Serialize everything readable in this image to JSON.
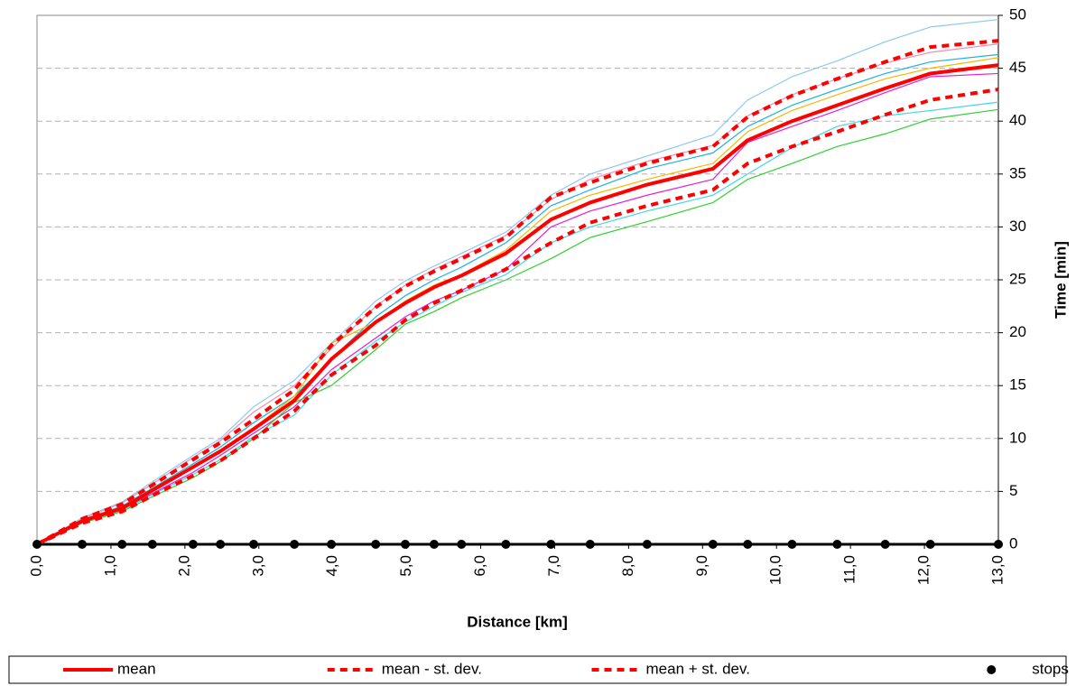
{
  "chart_data": {
    "type": "line",
    "x_label": "Distance [km]",
    "y_label": "Time [min]",
    "x": [
      0,
      0.61,
      1.15,
      1.56,
      2.11,
      2.48,
      2.93,
      3.48,
      3.98,
      4.58,
      4.98,
      5.37,
      5.74,
      6.34,
      6.95,
      7.48,
      8.25,
      9.14,
      9.61,
      10.21,
      10.82,
      11.47,
      12.08,
      13.0
    ],
    "xlim": [
      0,
      13
    ],
    "xticks": [
      {
        "value": 0,
        "label": "0,0"
      },
      {
        "value": 1,
        "label": "1,0"
      },
      {
        "value": 2,
        "label": "2,0"
      },
      {
        "value": 3,
        "label": "3,0"
      },
      {
        "value": 4,
        "label": "4,0"
      },
      {
        "value": 5,
        "label": "5,0"
      },
      {
        "value": 6,
        "label": "6,0"
      },
      {
        "value": 7,
        "label": "7,0"
      },
      {
        "value": 8,
        "label": "8,0"
      },
      {
        "value": 9,
        "label": "9,0"
      },
      {
        "value": 10,
        "label": "10,0"
      },
      {
        "value": 11,
        "label": "11,0"
      },
      {
        "value": 12,
        "label": "12,0"
      },
      {
        "value": 13,
        "label": "13,0"
      }
    ],
    "ylim": [
      0,
      50
    ],
    "yticks": [
      0,
      5,
      10,
      15,
      20,
      25,
      30,
      35,
      40,
      45,
      50
    ],
    "y_axis_side": "right",
    "grid": true,
    "legend": "bottom",
    "series": [
      {
        "color": "#8ec8f0",
        "style": "thin",
        "values": [
          0,
          2.5,
          4,
          5.9,
          8.4,
          10,
          13,
          15.5,
          19,
          23,
          24.9,
          26.3,
          27.5,
          29.5,
          33,
          35,
          36.7,
          38.7,
          42,
          44.2,
          45.7,
          47.5,
          48.9,
          49.6
        ]
      },
      {
        "color": "#f48fb1",
        "style": "thin",
        "values": [
          0,
          2.4,
          3.9,
          5.7,
          8.2,
          9.8,
          12.5,
          15,
          18.5,
          22.5,
          24.5,
          26,
          27.2,
          29.2,
          32.6,
          34.5,
          36.2,
          37.7,
          40.5,
          42.5,
          44,
          45.5,
          46.5,
          47.3
        ]
      },
      {
        "color": "#1ab0e0",
        "style": "thin",
        "values": [
          0,
          2.3,
          3.6,
          5.3,
          7.6,
          9.2,
          11.5,
          14,
          17.5,
          21.5,
          23.5,
          25,
          26.2,
          28.5,
          32,
          33.5,
          35.5,
          37,
          39.5,
          41.5,
          43,
          44.5,
          45.6,
          46.3
        ]
      },
      {
        "color": "#f5b800",
        "style": "thin",
        "values": [
          0,
          2.2,
          3.5,
          5,
          7.2,
          8.7,
          11,
          14,
          19,
          21,
          23,
          24.5,
          25.5,
          27.8,
          31.5,
          33,
          34.5,
          36,
          39,
          41,
          42.5,
          44,
          45,
          46
        ]
      },
      {
        "color": "#e020e0",
        "style": "thin",
        "values": [
          0,
          2.1,
          3.3,
          4.8,
          6.8,
          8.4,
          10.5,
          13,
          16.5,
          19.5,
          21.5,
          23,
          24,
          26,
          30,
          31.5,
          33,
          34.5,
          38,
          39.5,
          41,
          42.7,
          44.2,
          44.5
        ]
      },
      {
        "color": "#40d8e8",
        "style": "thin",
        "values": [
          0,
          2,
          3.2,
          4.7,
          6.6,
          8,
          10.2,
          12.2,
          16,
          19.2,
          21,
          22.5,
          23.8,
          25.5,
          28.5,
          30,
          31.5,
          33,
          35,
          37.5,
          39.5,
          40.5,
          41,
          41.8
        ]
      },
      {
        "color": "#30d030",
        "style": "thin",
        "values": [
          0,
          2,
          3.1,
          4.5,
          6.3,
          7.8,
          10,
          13.4,
          15,
          18.4,
          20.8,
          22,
          23.3,
          25,
          27,
          29,
          30.5,
          32.3,
          34.5,
          36,
          37.6,
          38.8,
          40.2,
          41.1
        ]
      },
      {
        "name": "mean",
        "color": "#ff0000",
        "style": "solid",
        "values": [
          0,
          2.2,
          3.4,
          5.1,
          7.3,
          8.8,
          10.9,
          13.6,
          17.5,
          21,
          22.8,
          24.3,
          25.4,
          27.5,
          30.7,
          32.3,
          34,
          35.5,
          38.2,
          40,
          41.5,
          43.1,
          44.5,
          45.3
        ]
      },
      {
        "name": "mean - st. dev.",
        "color": "#ff0000",
        "style": "dashed",
        "values": [
          0,
          2,
          3.1,
          4.6,
          6.5,
          7.9,
          10,
          12.6,
          16,
          18.8,
          21.2,
          22.8,
          24,
          26,
          28.5,
          30.4,
          32,
          33.5,
          36,
          37.6,
          39,
          40.6,
          42,
          43
        ]
      },
      {
        "name": "mean + st. dev.",
        "color": "#ff0000",
        "style": "dashed",
        "values": [
          0,
          2.4,
          3.8,
          5.6,
          8,
          9.6,
          11.8,
          14.6,
          18.8,
          22.4,
          24.4,
          25.8,
          27,
          29,
          32.8,
          34.2,
          36,
          37.6,
          40.4,
          42.4,
          44,
          45.6,
          47,
          47.6
        ]
      },
      {
        "name": "stops",
        "color": "#000000",
        "style": "markers",
        "values": [
          0,
          0,
          0,
          0,
          0,
          0,
          0,
          0,
          0,
          0,
          0,
          0,
          0,
          0,
          0,
          0,
          0,
          0,
          0,
          0,
          0,
          0,
          0,
          0
        ]
      }
    ]
  }
}
